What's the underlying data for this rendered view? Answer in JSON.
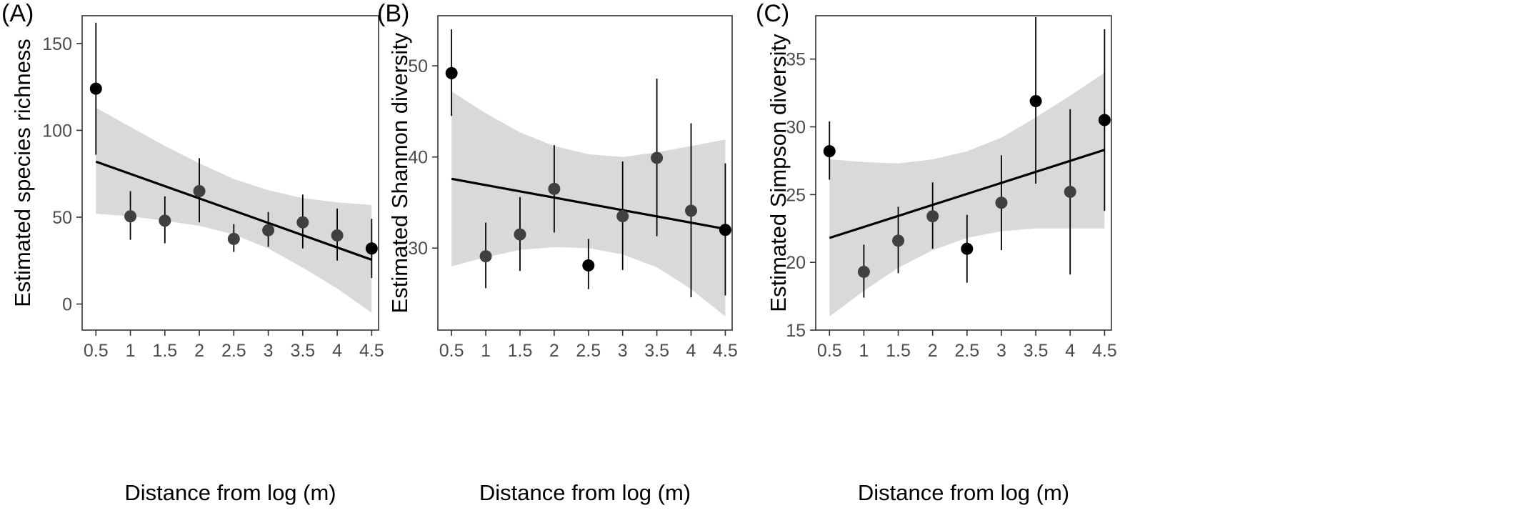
{
  "figure": {
    "band_color": "#d9d9d9",
    "line_color": "#000000",
    "point_colors": {
      "highlight": "#000000",
      "normal": "#404040"
    }
  },
  "chart_data": [
    {
      "type": "scatter",
      "panel_label": "(A)",
      "xlabel": "Distance from log (m)",
      "ylabel": "Estimated species richness",
      "x_ticks": [
        "0.5",
        "1",
        "1.5",
        "2",
        "2.5",
        "3",
        "3.5",
        "4",
        "4.5"
      ],
      "y_ticks": [
        "0",
        "50",
        "100",
        "150"
      ],
      "xlim": [
        0.3,
        4.6
      ],
      "ylim": [
        -15,
        166
      ],
      "grid": false,
      "points": [
        {
          "x": 0.5,
          "y": 124,
          "lower": 86,
          "upper": 162,
          "highlight": true
        },
        {
          "x": 1.0,
          "y": 50.5,
          "lower": 37,
          "upper": 65,
          "highlight": false
        },
        {
          "x": 1.5,
          "y": 48,
          "lower": 35,
          "upper": 62,
          "highlight": false
        },
        {
          "x": 2.0,
          "y": 65,
          "lower": 47,
          "upper": 84,
          "highlight": false
        },
        {
          "x": 2.5,
          "y": 37.5,
          "lower": 30,
          "upper": 46,
          "highlight": false
        },
        {
          "x": 3.0,
          "y": 42.5,
          "lower": 33,
          "upper": 53,
          "highlight": false
        },
        {
          "x": 3.5,
          "y": 47,
          "lower": 32,
          "upper": 63,
          "highlight": false
        },
        {
          "x": 4.0,
          "y": 39.5,
          "lower": 25,
          "upper": 55,
          "highlight": false
        },
        {
          "x": 4.5,
          "y": 32,
          "lower": 15,
          "upper": 49,
          "highlight": true
        }
      ],
      "fit": {
        "x": [
          0.5,
          4.5
        ],
        "y": [
          82,
          25.5
        ]
      },
      "band": [
        {
          "x": 0.5,
          "lower": 52,
          "upper": 113
        },
        {
          "x": 1.0,
          "lower": 50.5,
          "upper": 102
        },
        {
          "x": 1.5,
          "lower": 48,
          "upper": 91
        },
        {
          "x": 2.0,
          "lower": 45,
          "upper": 81
        },
        {
          "x": 2.5,
          "lower": 40,
          "upper": 72
        },
        {
          "x": 3.0,
          "lower": 32,
          "upper": 65.5
        },
        {
          "x": 3.5,
          "lower": 21,
          "upper": 61
        },
        {
          "x": 4.0,
          "lower": 9,
          "upper": 58.5
        },
        {
          "x": 4.5,
          "lower": -5,
          "upper": 57
        }
      ]
    },
    {
      "type": "scatter",
      "panel_label": "(B)",
      "xlabel": "Distance from log (m)",
      "ylabel": "Estimated Shannon diversity",
      "x_ticks": [
        "0.5",
        "1",
        "1.5",
        "2",
        "2.5",
        "3",
        "3.5",
        "4",
        "4.5"
      ],
      "y_ticks": [
        "30",
        "40",
        "50"
      ],
      "xlim": [
        0.3,
        4.6
      ],
      "ylim": [
        21,
        55.5
      ],
      "grid": false,
      "points": [
        {
          "x": 0.5,
          "y": 49.2,
          "lower": 44.5,
          "upper": 54,
          "highlight": true
        },
        {
          "x": 1.0,
          "y": 29.1,
          "lower": 25.6,
          "upper": 32.8,
          "highlight": false
        },
        {
          "x": 1.5,
          "y": 31.5,
          "lower": 27.5,
          "upper": 35.6,
          "highlight": false
        },
        {
          "x": 2.0,
          "y": 36.5,
          "lower": 31.7,
          "upper": 41.3,
          "highlight": false
        },
        {
          "x": 2.5,
          "y": 28.1,
          "lower": 25.5,
          "upper": 31,
          "highlight": true
        },
        {
          "x": 3.0,
          "y": 33.5,
          "lower": 27.6,
          "upper": 39.5,
          "highlight": false
        },
        {
          "x": 3.5,
          "y": 39.9,
          "lower": 31.3,
          "upper": 48.6,
          "highlight": false
        },
        {
          "x": 4.0,
          "y": 34.1,
          "lower": 24.6,
          "upper": 43.7,
          "highlight": false
        },
        {
          "x": 4.5,
          "y": 32,
          "lower": 24.8,
          "upper": 39.3,
          "highlight": true
        }
      ],
      "fit": {
        "x": [
          0.5,
          4.5
        ],
        "y": [
          37.6,
          32.1
        ]
      },
      "band": [
        {
          "x": 0.5,
          "lower": 28,
          "upper": 47.2
        },
        {
          "x": 1.0,
          "lower": 29,
          "upper": 44.8
        },
        {
          "x": 1.5,
          "lower": 29.8,
          "upper": 42.7
        },
        {
          "x": 2.0,
          "lower": 30.1,
          "upper": 41.2
        },
        {
          "x": 2.5,
          "lower": 30,
          "upper": 40.3
        },
        {
          "x": 3.0,
          "lower": 29.3,
          "upper": 40
        },
        {
          "x": 3.5,
          "lower": 27.9,
          "upper": 40.5
        },
        {
          "x": 4.0,
          "lower": 25.5,
          "upper": 41.2
        },
        {
          "x": 4.5,
          "lower": 22.5,
          "upper": 41.9
        }
      ]
    },
    {
      "type": "scatter",
      "panel_label": "(C)",
      "xlabel": "Distance from log (m)",
      "ylabel": "Estimated Simpson diversity",
      "x_ticks": [
        "0.5",
        "1",
        "1.5",
        "2",
        "2.5",
        "3",
        "3.5",
        "4",
        "4.5"
      ],
      "y_ticks": [
        "15",
        "20",
        "25",
        "30",
        "35"
      ],
      "xlim": [
        0.3,
        4.6
      ],
      "ylim": [
        15,
        38.2
      ],
      "grid": false,
      "points": [
        {
          "x": 0.5,
          "y": 28.2,
          "lower": 26.1,
          "upper": 30.4,
          "highlight": true
        },
        {
          "x": 1.0,
          "y": 19.3,
          "lower": 17.4,
          "upper": 21.3,
          "highlight": false
        },
        {
          "x": 1.5,
          "y": 21.6,
          "lower": 19.2,
          "upper": 24.1,
          "highlight": false
        },
        {
          "x": 2.0,
          "y": 23.4,
          "lower": 21,
          "upper": 25.9,
          "highlight": false
        },
        {
          "x": 2.5,
          "y": 21,
          "lower": 18.5,
          "upper": 23.5,
          "highlight": true
        },
        {
          "x": 3.0,
          "y": 24.4,
          "lower": 20.9,
          "upper": 27.9,
          "highlight": false
        },
        {
          "x": 3.5,
          "y": 31.9,
          "lower": 25.8,
          "upper": 38.1,
          "highlight": true
        },
        {
          "x": 4.0,
          "y": 25.2,
          "lower": 19.1,
          "upper": 31.3,
          "highlight": false
        },
        {
          "x": 4.5,
          "y": 30.5,
          "lower": 23.8,
          "upper": 37.2,
          "highlight": true
        }
      ],
      "fit": {
        "x": [
          0.5,
          4.5
        ],
        "y": [
          21.8,
          28.3
        ]
      },
      "band": [
        {
          "x": 0.5,
          "lower": 16,
          "upper": 27.6
        },
        {
          "x": 1.0,
          "lower": 17.9,
          "upper": 27.4
        },
        {
          "x": 1.5,
          "lower": 19.6,
          "upper": 27.3
        },
        {
          "x": 2.0,
          "lower": 20.9,
          "upper": 27.6
        },
        {
          "x": 2.5,
          "lower": 21.8,
          "upper": 28.2
        },
        {
          "x": 3.0,
          "lower": 22.3,
          "upper": 29.2
        },
        {
          "x": 3.5,
          "lower": 22.5,
          "upper": 30.7
        },
        {
          "x": 4.0,
          "lower": 22.5,
          "upper": 32.3
        },
        {
          "x": 4.5,
          "lower": 22.5,
          "upper": 34
        }
      ]
    }
  ]
}
